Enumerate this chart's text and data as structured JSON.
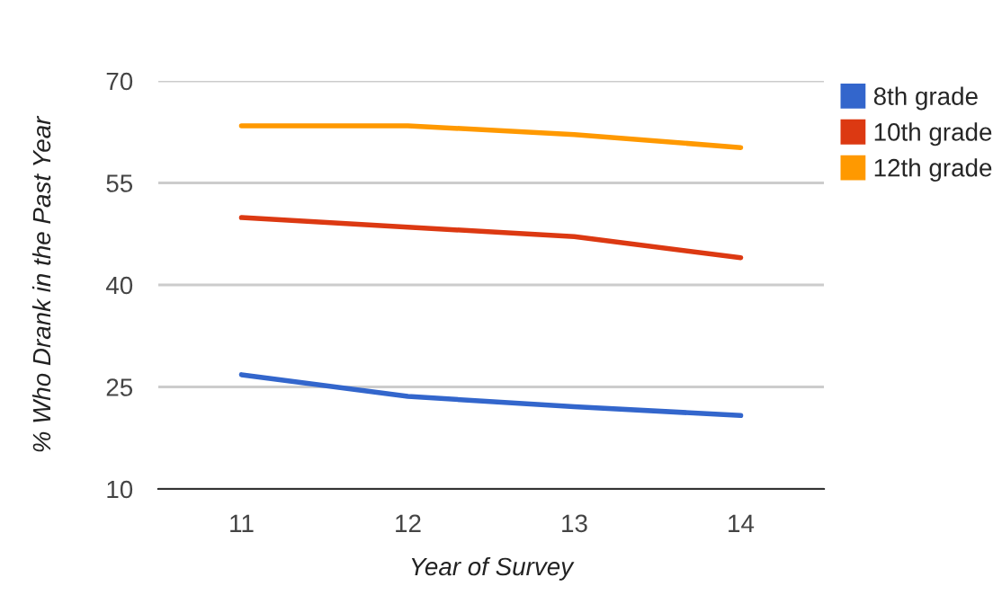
{
  "chart_data": {
    "type": "line",
    "xlabel": "Year of Survey",
    "ylabel": "% Who Drank in the Past Year",
    "categories": [
      "11",
      "12",
      "13",
      "14"
    ],
    "series": [
      {
        "name": "8th grade",
        "color": "#3366cc",
        "values": [
          26.8,
          23.6,
          22.1,
          20.8
        ]
      },
      {
        "name": "10th grade",
        "color": "#dc3912",
        "values": [
          49.9,
          48.5,
          47.1,
          44.0
        ]
      },
      {
        "name": "12th grade",
        "color": "#ff9900",
        "values": [
          63.4,
          63.4,
          62.1,
          60.2
        ]
      }
    ],
    "ylim": [
      10,
      70
    ],
    "yticks": [
      10,
      25,
      40,
      55,
      70
    ],
    "grid": "y",
    "legend": "right"
  }
}
